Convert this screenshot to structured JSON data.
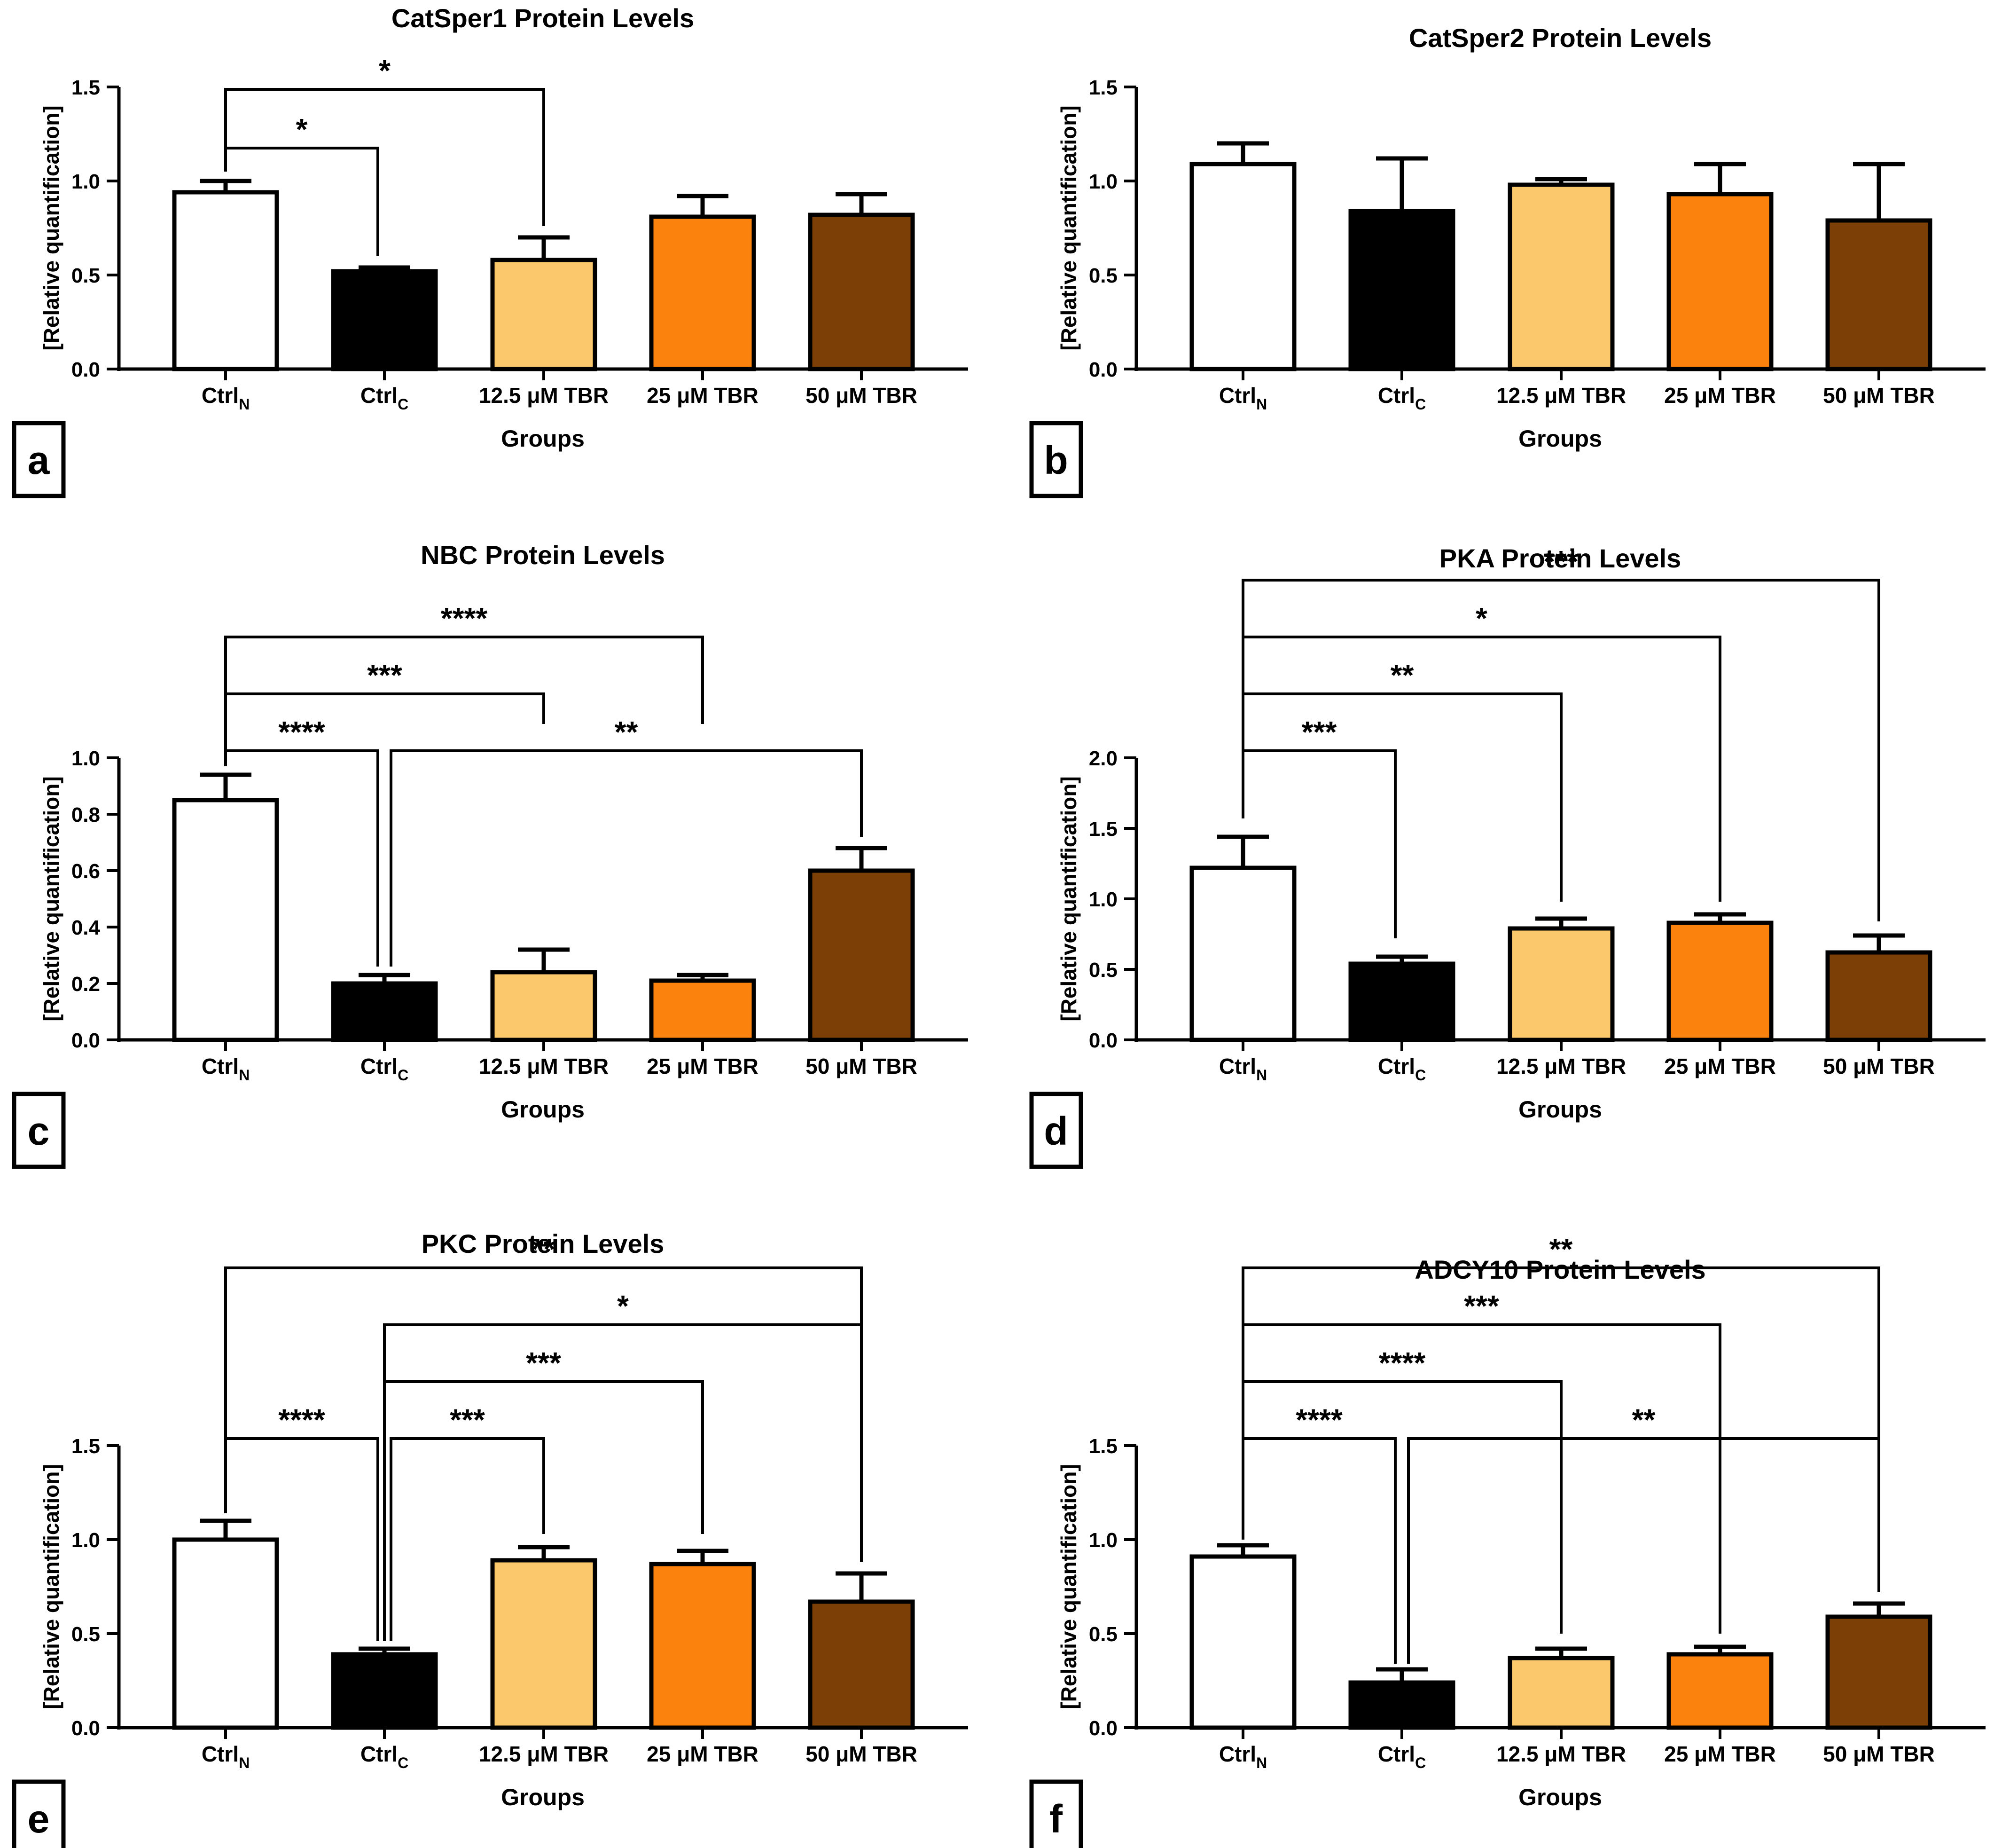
{
  "chart_data": [
    {
      "panel": "a",
      "type": "bar",
      "title": "CatSper1 Protein Levels",
      "xlabel": "Groups",
      "ylabel": "[Relative quantification]",
      "categories": [
        {
          "main": "Ctrl",
          "sub": "N"
        },
        {
          "main": "Ctrl",
          "sub": "C"
        },
        {
          "main": "12.5 μM TBR",
          "sub": ""
        },
        {
          "main": "25 μM TBR",
          "sub": ""
        },
        {
          "main": "50 μM TBR",
          "sub": ""
        }
      ],
      "values": [
        0.94,
        0.52,
        0.58,
        0.81,
        0.82
      ],
      "errors": [
        0.06,
        0.02,
        0.12,
        0.11,
        0.11
      ],
      "colors": [
        "#ffffff",
        "#000000",
        "#fbc96b",
        "#fc820e",
        "#7c3f06"
      ],
      "ylim": [
        0,
        1.5
      ],
      "yticks": [
        0.0,
        0.5,
        1.0,
        1.5
      ],
      "tick_decimals": 1,
      "y_top_fraction": 0.9,
      "significance": [
        {
          "from": 0,
          "to": 1,
          "label": "*",
          "level": 0,
          "from_y": 1.05,
          "to_y": 0.6
        },
        {
          "from": 0,
          "to": 2,
          "label": "*",
          "level": 1,
          "from_y": 1.05,
          "to_y": 0.76
        }
      ]
    },
    {
      "panel": "b",
      "type": "bar",
      "title": "CatSper2 Protein Levels",
      "xlabel": "Groups",
      "ylabel": "[Relative quantification]",
      "categories": [
        {
          "main": "Ctrl",
          "sub": "N"
        },
        {
          "main": "Ctrl",
          "sub": "C"
        },
        {
          "main": "12.5 μM TBR",
          "sub": ""
        },
        {
          "main": "25 μM TBR",
          "sub": ""
        },
        {
          "main": "50 μM TBR",
          "sub": ""
        }
      ],
      "values": [
        1.09,
        0.84,
        0.98,
        0.93,
        0.79
      ],
      "errors": [
        0.11,
        0.28,
        0.03,
        0.16,
        0.3
      ],
      "colors": [
        "#ffffff",
        "#000000",
        "#fbc96b",
        "#fc820e",
        "#7c3f06"
      ],
      "ylim": [
        0,
        1.5
      ],
      "yticks": [
        0.0,
        0.5,
        1.0,
        1.5
      ],
      "tick_decimals": 1,
      "y_top_fraction": 0.9,
      "significance": []
    },
    {
      "panel": "c",
      "type": "bar",
      "title": "NBC Protein Levels",
      "xlabel": "Groups",
      "ylabel": "[Relative quantification]",
      "categories": [
        {
          "main": "Ctrl",
          "sub": "N"
        },
        {
          "main": "Ctrl",
          "sub": "C"
        },
        {
          "main": "12.5 μM TBR",
          "sub": ""
        },
        {
          "main": "25 μM TBR",
          "sub": ""
        },
        {
          "main": "50 μM TBR",
          "sub": ""
        }
      ],
      "values": [
        0.85,
        0.2,
        0.24,
        0.21,
        0.6
      ],
      "errors": [
        0.09,
        0.03,
        0.08,
        0.02,
        0.08
      ],
      "colors": [
        "#ffffff",
        "#000000",
        "#fbc96b",
        "#fc820e",
        "#7c3f06"
      ],
      "ylim": [
        0,
        1.0
      ],
      "yticks": [
        0.0,
        0.2,
        0.4,
        0.6,
        0.8,
        1.0
      ],
      "tick_decimals": 1,
      "y_top_fraction": 0.6,
      "significance": [
        {
          "from": 0,
          "to": 1,
          "label": "****",
          "level": 0,
          "from_y": 0.97,
          "to_y": 0.26
        },
        {
          "from": 1,
          "to": 4,
          "label": "**",
          "level": 0,
          "from_y": 0.26,
          "to_y": 0.72
        },
        {
          "from": 0,
          "to": 2,
          "label": "***",
          "level": 1,
          "from_y": 0.97,
          "to_y": 1.12
        },
        {
          "from": 0,
          "to": 3,
          "label": "****",
          "level": 2,
          "from_y": 0.97,
          "to_y": 1.12
        }
      ]
    },
    {
      "panel": "d",
      "type": "bar",
      "title": "PKA Protein Levels",
      "xlabel": "Groups",
      "ylabel": "[Relative quantification]",
      "categories": [
        {
          "main": "Ctrl",
          "sub": "N"
        },
        {
          "main": "Ctrl",
          "sub": "C"
        },
        {
          "main": "12.5 μM TBR",
          "sub": ""
        },
        {
          "main": "25 μM TBR",
          "sub": ""
        },
        {
          "main": "50 μM TBR",
          "sub": ""
        }
      ],
      "values": [
        1.22,
        0.54,
        0.79,
        0.83,
        0.62
      ],
      "errors": [
        0.22,
        0.05,
        0.07,
        0.06,
        0.12
      ],
      "colors": [
        "#ffffff",
        "#000000",
        "#fbc96b",
        "#fc820e",
        "#7c3f06"
      ],
      "ylim": [
        0,
        2.0
      ],
      "yticks": [
        0.0,
        0.5,
        1.0,
        1.5,
        2.0
      ],
      "tick_decimals": 1,
      "y_top_fraction": 0.6,
      "significance": [
        {
          "from": 0,
          "to": 1,
          "label": "***",
          "level": 0,
          "from_y": 1.57,
          "to_y": 0.72
        },
        {
          "from": 0,
          "to": 2,
          "label": "**",
          "level": 1,
          "from_y": 1.57,
          "to_y": 0.98
        },
        {
          "from": 0,
          "to": 3,
          "label": "*",
          "level": 2,
          "from_y": 1.57,
          "to_y": 0.98
        },
        {
          "from": 0,
          "to": 4,
          "label": "***",
          "level": 3,
          "from_y": 1.57,
          "to_y": 0.84
        }
      ]
    },
    {
      "panel": "e",
      "type": "bar",
      "title": "PKC Protein Levels",
      "xlabel": "Groups",
      "ylabel": "[Relative quantification]",
      "categories": [
        {
          "main": "Ctrl",
          "sub": "N"
        },
        {
          "main": "Ctrl",
          "sub": "C"
        },
        {
          "main": "12.5 μM TBR",
          "sub": ""
        },
        {
          "main": "25 μM TBR",
          "sub": ""
        },
        {
          "main": "50 μM TBR",
          "sub": ""
        }
      ],
      "values": [
        1.0,
        0.39,
        0.89,
        0.87,
        0.67
      ],
      "errors": [
        0.1,
        0.03,
        0.07,
        0.07,
        0.15
      ],
      "colors": [
        "#ffffff",
        "#000000",
        "#fbc96b",
        "#fc820e",
        "#7c3f06"
      ],
      "ylim": [
        0,
        1.5
      ],
      "yticks": [
        0.0,
        0.5,
        1.0,
        1.5
      ],
      "tick_decimals": 1,
      "y_top_fraction": 0.6,
      "significance": [
        {
          "from": 0,
          "to": 1,
          "label": "****",
          "level": 0,
          "from_y": 1.14,
          "to_y": 0.46
        },
        {
          "from": 1,
          "to": 2,
          "label": "***",
          "level": 0,
          "from_y": 0.46,
          "to_y": 1.03
        },
        {
          "from": 1,
          "to": 3,
          "label": "***",
          "level": 1,
          "from_y": 0.46,
          "to_y": 1.03
        },
        {
          "from": 1,
          "to": 4,
          "label": "*",
          "level": 2,
          "from_y": 0.46,
          "to_y": 0.88
        },
        {
          "from": 0,
          "to": 4,
          "label": "**",
          "level": 3,
          "from_y": 1.14,
          "to_y": 0.88
        }
      ]
    },
    {
      "panel": "f",
      "type": "bar",
      "title": "ADCY10 Protein Levels",
      "xlabel": "Groups",
      "ylabel": "[Relative quantification]",
      "categories": [
        {
          "main": "Ctrl",
          "sub": "N"
        },
        {
          "main": "Ctrl",
          "sub": "C"
        },
        {
          "main": "12.5 μM TBR",
          "sub": ""
        },
        {
          "main": "25 μM TBR",
          "sub": ""
        },
        {
          "main": "50 μM TBR",
          "sub": ""
        }
      ],
      "values": [
        0.91,
        0.24,
        0.37,
        0.39,
        0.59
      ],
      "errors": [
        0.06,
        0.07,
        0.05,
        0.04,
        0.07
      ],
      "colors": [
        "#ffffff",
        "#000000",
        "#fbc96b",
        "#fc820e",
        "#7c3f06"
      ],
      "ylim": [
        0,
        1.5
      ],
      "yticks": [
        0.0,
        0.5,
        1.0,
        1.5
      ],
      "tick_decimals": 1,
      "y_top_fraction": 0.6,
      "significance": [
        {
          "from": 0,
          "to": 1,
          "label": "****",
          "level": 0,
          "from_y": 1.0,
          "to_y": 0.34
        },
        {
          "from": 1,
          "to": 4,
          "label": "**",
          "level": 0,
          "from_y": 0.34,
          "to_y": 0.72
        },
        {
          "from": 0,
          "to": 2,
          "label": "****",
          "level": 1,
          "from_y": 1.0,
          "to_y": 0.5
        },
        {
          "from": 0,
          "to": 3,
          "label": "***",
          "level": 2,
          "from_y": 1.0,
          "to_y": 0.5
        },
        {
          "from": 0,
          "to": 4,
          "label": "**",
          "level": 3,
          "from_y": 1.0,
          "to_y": 0.72
        }
      ]
    }
  ]
}
